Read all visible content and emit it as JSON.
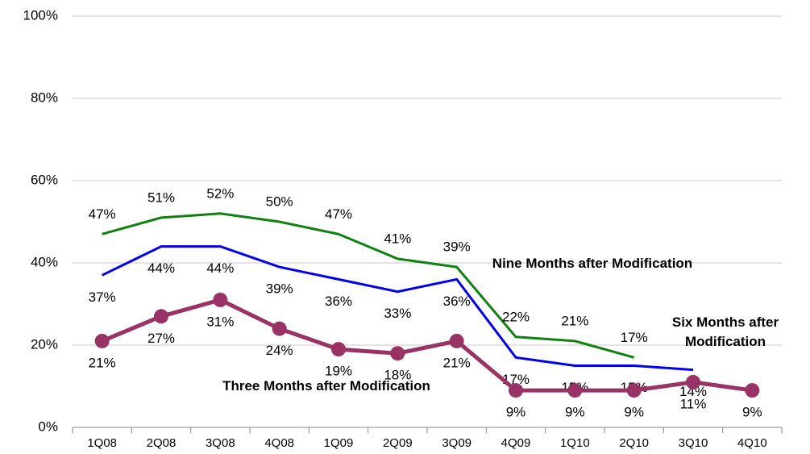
{
  "chart_data": {
    "type": "line",
    "categories": [
      "1Q08",
      "2Q08",
      "3Q08",
      "4Q08",
      "1Q09",
      "2Q09",
      "3Q09",
      "4Q09",
      "1Q10",
      "2Q10",
      "3Q10",
      "4Q10"
    ],
    "series": [
      {
        "name": "Nine Months after Modification",
        "color": "#138013",
        "values": [
          47,
          51,
          52,
          50,
          47,
          41,
          39,
          22,
          21,
          17,
          null,
          null
        ],
        "value_labels": [
          "47%",
          "51%",
          "52%",
          "50%",
          "47%",
          "41%",
          "39%",
          "22%",
          "21%",
          "17%",
          null,
          null
        ]
      },
      {
        "name": "Six Months after Modification",
        "color": "#0000ee",
        "values": [
          37,
          44,
          44,
          39,
          36,
          33,
          36,
          17,
          15,
          15,
          14,
          null
        ],
        "value_labels": [
          "37%",
          "44%",
          "44%",
          "39%",
          "36%",
          "33%",
          "36%",
          "17%",
          "15%",
          "15%",
          "14%",
          null
        ]
      },
      {
        "name": "Three Months after Modification",
        "color": "#993366",
        "marker": "circle",
        "values": [
          21,
          27,
          31,
          24,
          19,
          18,
          21,
          9,
          9,
          9,
          11,
          9
        ],
        "value_labels": [
          "21%",
          "27%",
          "31%",
          "24%",
          "19%",
          "18%",
          "21%",
          "9%",
          "9%",
          "9%",
          "11%",
          "9%"
        ]
      }
    ],
    "ylim": [
      0,
      100
    ],
    "yticks": [
      {
        "value": 0,
        "label": "0%"
      },
      {
        "value": 20,
        "label": "20%"
      },
      {
        "value": 40,
        "label": "40%"
      },
      {
        "value": 60,
        "label": "60%"
      },
      {
        "value": 80,
        "label": "80%"
      },
      {
        "value": 100,
        "label": "100%"
      }
    ],
    "grid": true
  }
}
